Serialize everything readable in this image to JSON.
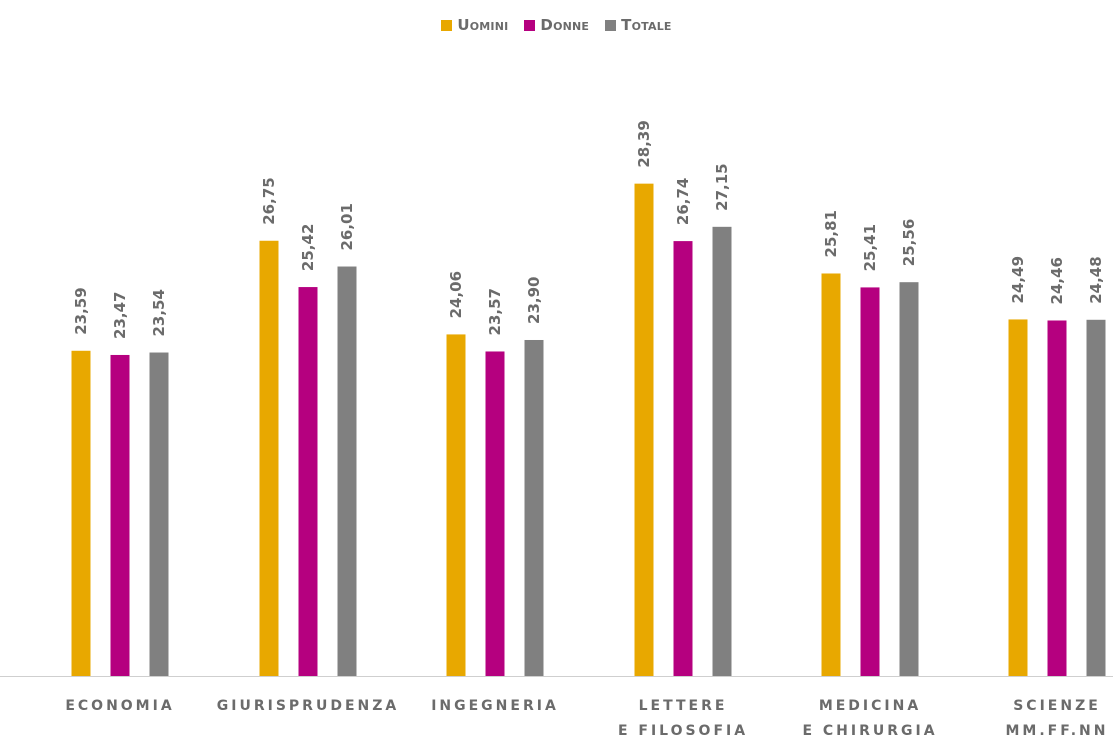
{
  "chart_data": {
    "type": "bar",
    "categories": [
      [
        "ECONOMIA"
      ],
      [
        "GIURISPRUDENZA"
      ],
      [
        "INGEGNERIA"
      ],
      [
        "LETTERE",
        "E FILOSOFIA"
      ],
      [
        "MEDICINA",
        "E CHIRURGIA"
      ],
      [
        "SCIENZE",
        "MM.FF.NN"
      ]
    ],
    "series": [
      {
        "name": "Uomini",
        "color": "#E8A800",
        "values": [
          23.59,
          26.75,
          24.06,
          28.39,
          25.81,
          24.49
        ],
        "labels": [
          "23,59",
          "26,75",
          "24,06",
          "28,39",
          "25,81",
          "24,49"
        ]
      },
      {
        "name": "Donne",
        "color": "#B5007F",
        "values": [
          23.47,
          25.42,
          23.57,
          26.74,
          25.41,
          24.46
        ],
        "labels": [
          "23,47",
          "25,42",
          "23,57",
          "26,74",
          "25,41",
          "24,46"
        ]
      },
      {
        "name": "Totale",
        "color": "#808080",
        "values": [
          23.54,
          26.01,
          23.9,
          27.15,
          25.56,
          24.48
        ],
        "labels": [
          "23,54",
          "26,01",
          "23,90",
          "27,15",
          "25,56",
          "24,48"
        ]
      }
    ],
    "ylim": [
      14.25,
      29.5
    ],
    "grid": false,
    "legend_position": "top-center",
    "title": "",
    "xlabel": "",
    "ylabel": ""
  }
}
